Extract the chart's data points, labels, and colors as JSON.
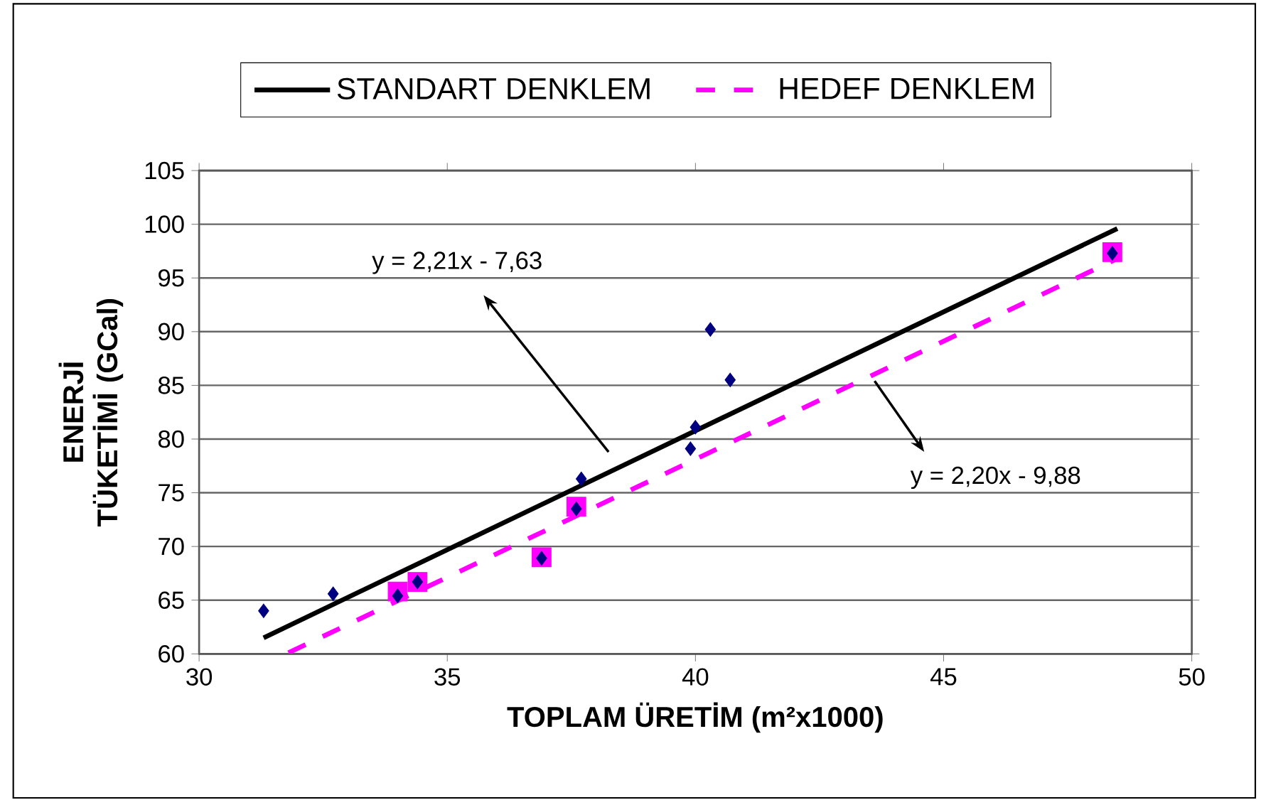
{
  "chart_data": {
    "type": "line",
    "xlabel": "TOPLAM ÜRETİM (m²x1000)",
    "ylabel": "ENERJİ TÜKETİMİ (GCal)",
    "xlim": [
      30,
      50
    ],
    "xticks": [
      30,
      35,
      40,
      45,
      50
    ],
    "ylim": [
      60,
      105
    ],
    "yticks": [
      60,
      65,
      70,
      75,
      80,
      85,
      90,
      95,
      100,
      105
    ],
    "grid": "y",
    "legend": "top",
    "series": [
      {
        "name": "STANDART DENKLEM",
        "color": "#000000",
        "line_style": "solid",
        "marker": "none",
        "x": [
          31.3,
          48.5
        ],
        "values": [
          61.5,
          99.6
        ]
      },
      {
        "name": "HEDEF DENKLEM",
        "color": "#ff00ff",
        "line_style": "dashed",
        "marker": "none",
        "x": [
          31.8,
          48.5
        ],
        "values": [
          60.1,
          96.8
        ]
      },
      {
        "type": "scatter",
        "color": "#ff00ff",
        "marker": "square",
        "x": [
          34.0,
          34.4,
          36.9,
          37.6,
          48.4
        ],
        "values": [
          65.8,
          66.7,
          69.0,
          73.7,
          97.4
        ]
      },
      {
        "type": "scatter",
        "color": "#000080",
        "marker": "diamond",
        "x": [
          31.3,
          32.7,
          34.0,
          34.4,
          36.9,
          37.7,
          37.6,
          39.9,
          40.0,
          40.3,
          40.7,
          48.4
        ],
        "values": [
          64.0,
          65.6,
          65.4,
          66.7,
          68.9,
          76.3,
          73.5,
          79.1,
          81.1,
          90.2,
          85.5,
          97.3
        ]
      }
    ],
    "annotations": [
      "y = 2,21x - 7,63",
      "y = 2,20x - 9,88"
    ]
  }
}
